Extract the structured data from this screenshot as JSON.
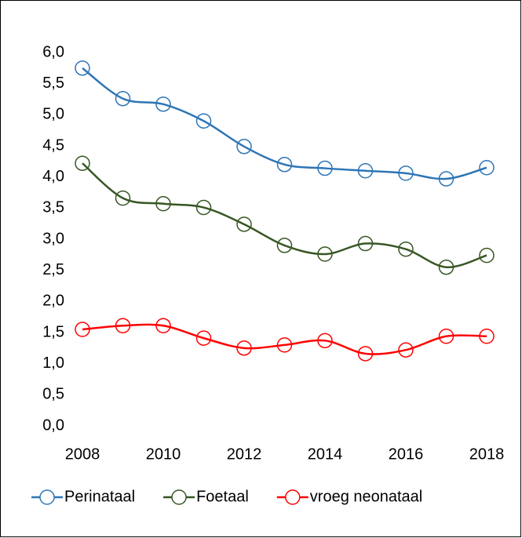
{
  "chart_data": {
    "type": "line",
    "x": [
      2008,
      2009,
      2010,
      2011,
      2012,
      2013,
      2014,
      2015,
      2016,
      2017,
      2018
    ],
    "series": [
      {
        "name": "Perinataal",
        "color": "#2e75b6",
        "values": [
          5.75,
          5.26,
          5.17,
          4.9,
          4.49,
          4.2,
          4.14,
          4.1,
          4.06,
          3.97,
          4.15
        ]
      },
      {
        "name": "Foetaal",
        "color": "#375623",
        "values": [
          4.22,
          3.66,
          3.57,
          3.51,
          3.24,
          2.9,
          2.76,
          2.93,
          2.84,
          2.55,
          2.74
        ]
      },
      {
        "name": "vroeg neonataal",
        "color": "#ff0000",
        "values": [
          1.55,
          1.61,
          1.61,
          1.41,
          1.25,
          1.3,
          1.37,
          1.16,
          1.22,
          1.44,
          1.44
        ]
      }
    ],
    "xlim": [
      2008,
      2018
    ],
    "xticks": [
      2008,
      2010,
      2012,
      2014,
      2016,
      2018
    ],
    "ylim": [
      0,
      6
    ],
    "yticks": [
      {
        "value": 0,
        "label": "0,0"
      },
      {
        "value": 0.5,
        "label": "0,5"
      },
      {
        "value": 1,
        "label": "1,0"
      },
      {
        "value": 1.5,
        "label": "1,5"
      },
      {
        "value": 2,
        "label": "2,0"
      },
      {
        "value": 2.5,
        "label": "2,5"
      },
      {
        "value": 3,
        "label": "3,0"
      },
      {
        "value": 3.5,
        "label": "3,5"
      },
      {
        "value": 4,
        "label": "4,0"
      },
      {
        "value": 4.5,
        "label": "4,5"
      },
      {
        "value": 5,
        "label": "5,0"
      },
      {
        "value": 5.5,
        "label": "5,5"
      },
      {
        "value": 6,
        "label": "6,0"
      }
    ],
    "grid": false,
    "legend": "bottom"
  }
}
